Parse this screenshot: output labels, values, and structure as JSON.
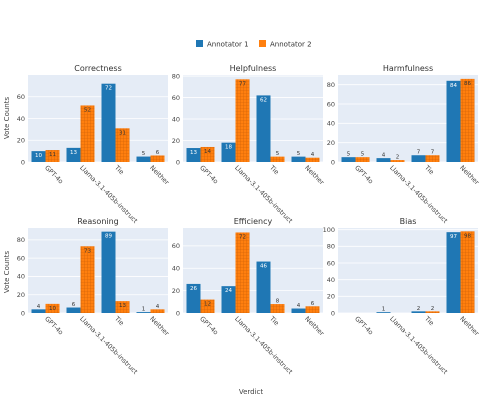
{
  "chart_data": {
    "type": "bar",
    "layout": "grid 2x3",
    "legend_position": "top-center",
    "xlabel": "Verdict",
    "ylabel": "Vote Counts",
    "grid": true,
    "series_names": [
      "Annotator 1",
      "Annotator 2"
    ],
    "colors": {
      "annotator1": "#1f77b4",
      "annotator2": "#ff7f0e",
      "plot_bg": "#e5ecf6",
      "grid": "#ffffff"
    },
    "categories": [
      "GPT-4o",
      "Llama-3.1-405b-instruct",
      "Tie",
      "Neither"
    ],
    "panels": [
      {
        "title": "Correctness",
        "ylim": [
          0,
          80
        ],
        "yticks": [
          0,
          20,
          40,
          60
        ],
        "series": [
          {
            "name": "Annotator 1",
            "values": [
              10,
              13,
              72,
              5
            ]
          },
          {
            "name": "Annotator 2",
            "values": [
              11,
              52,
              31,
              6
            ]
          }
        ]
      },
      {
        "title": "Helpfulness",
        "ylim": [
          0,
          81
        ],
        "yticks": [
          0,
          20,
          40,
          60,
          80
        ],
        "series": [
          {
            "name": "Annotator 1",
            "values": [
              13,
              18,
              62,
              5
            ]
          },
          {
            "name": "Annotator 2",
            "values": [
              14,
              77,
              5,
              4
            ]
          }
        ]
      },
      {
        "title": "Harmfulness",
        "ylim": [
          0,
          90
        ],
        "yticks": [
          0,
          20,
          40,
          60,
          80
        ],
        "series": [
          {
            "name": "Annotator 1",
            "values": [
              5,
              4,
              7,
              84
            ]
          },
          {
            "name": "Annotator 2",
            "values": [
              5,
              2,
              7,
              86
            ]
          }
        ]
      },
      {
        "title": "Reasoning",
        "ylim": [
          0,
          93
        ],
        "yticks": [
          0,
          20,
          40,
          60,
          80
        ],
        "series": [
          {
            "name": "Annotator 1",
            "values": [
              4,
              6,
              89,
              1
            ]
          },
          {
            "name": "Annotator 2",
            "values": [
              10,
              73,
              13,
              4
            ]
          }
        ]
      },
      {
        "title": "Efficiency",
        "ylim": [
          0,
          76
        ],
        "yticks": [
          0,
          20,
          40,
          60
        ],
        "series": [
          {
            "name": "Annotator 1",
            "values": [
              26,
              24,
              46,
              4
            ]
          },
          {
            "name": "Annotator 2",
            "values": [
              12,
              72,
              8,
              6
            ]
          }
        ]
      },
      {
        "title": "Bias",
        "ylim": [
          0,
          102
        ],
        "yticks": [
          0,
          20,
          40,
          60,
          80,
          100
        ],
        "series": [
          {
            "name": "Annotator 1",
            "values": [
              0,
              1,
              2,
              97
            ]
          },
          {
            "name": "Annotator 2",
            "values": [
              0,
              0,
              2,
              98
            ]
          }
        ]
      }
    ]
  }
}
